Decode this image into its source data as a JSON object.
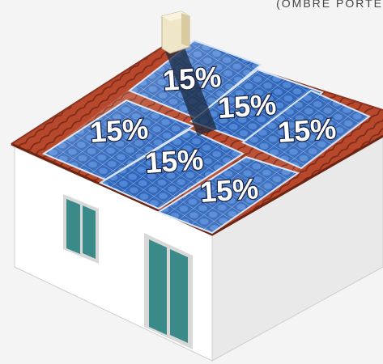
{
  "caption": "(OMBRE PORTÉ",
  "panels": [
    {
      "label": "15%"
    },
    {
      "label": "15%"
    },
    {
      "label": "15%"
    },
    {
      "label": "15%"
    },
    {
      "label": "15%"
    },
    {
      "label": "15%"
    }
  ],
  "colors": {
    "wall": "#ffffff",
    "wall_shade": "#e8e8e8",
    "roof_tile": "#b8482c",
    "roof_tile_dark": "#7d2a17",
    "panel": "#2f64b8",
    "panel_light": "#7fb1ee",
    "window_glass": "#3a8a8a",
    "window_frame": "#d8d8d8",
    "chimney": "#efe6c8",
    "shadow": "#1c2a3f"
  }
}
